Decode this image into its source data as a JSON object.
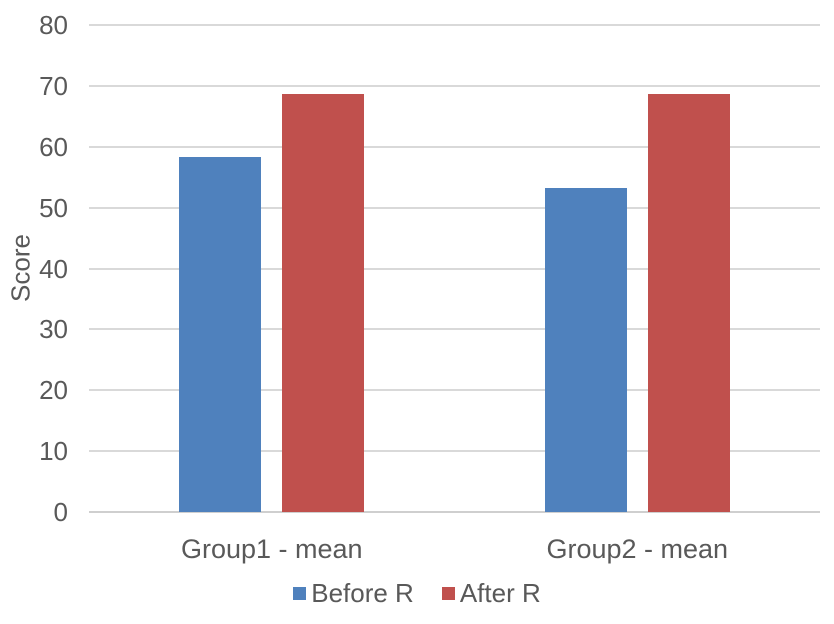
{
  "chart_data": {
    "type": "bar",
    "title": "",
    "categories": [
      "Group1 - mean",
      "Group2 - mean"
    ],
    "series": [
      {
        "name": "Before R",
        "color": "#4f81bd",
        "values": [
          58.4,
          53.2
        ]
      },
      {
        "name": "After R",
        "color": "#c0504d",
        "values": [
          68.7,
          68.7
        ]
      }
    ],
    "xlabel": "",
    "ylabel": "Score",
    "ylim": [
      0,
      80
    ],
    "yticks": [
      0,
      10,
      20,
      30,
      40,
      50,
      60,
      70,
      80
    ],
    "grid": true,
    "legend_position": "bottom"
  },
  "style": {
    "gridline_color": "#d9d9d9",
    "text_color": "#595959",
    "background_color": "#ffffff"
  }
}
